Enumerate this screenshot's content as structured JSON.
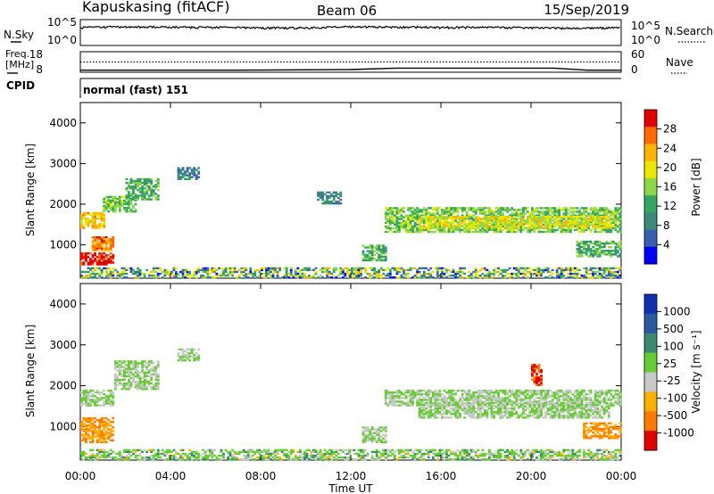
{
  "header": {
    "station": "Kapuskasing (fitACF)",
    "beam": "Beam 06",
    "date": "15/Sep/2019"
  },
  "nsky_panel": {
    "left_label": "N.Sky",
    "right_label": "N.Search",
    "left_ticks": [
      "10^5",
      "10^0"
    ],
    "right_ticks": [
      "10^5",
      "10^0"
    ]
  },
  "freq_panel": {
    "left_label_1": "Freq.",
    "left_label_2": "[MHz]",
    "right_label": "Nave",
    "left_ticks": [
      "18",
      "8"
    ],
    "right_ticks": [
      "60",
      "0"
    ]
  },
  "cpid_panel": {
    "label": "CPID",
    "mode": "normal (fast) 151"
  },
  "power_colorbar": {
    "label": "Power [dB]",
    "ticks": [
      "28",
      "24",
      "20",
      "16",
      "12",
      "8",
      "4"
    ],
    "colors": [
      "#e00000",
      "#ff6a00",
      "#ffb400",
      "#e8e800",
      "#8ed64a",
      "#34a860",
      "#3d8a7a",
      "#3a5fb0",
      "#0000ff"
    ]
  },
  "velocity_colorbar": {
    "label": "Velocity [m s⁻¹]",
    "ticks": [
      "1000",
      "500",
      "100",
      "25",
      "-25",
      "-100",
      "-500",
      "-1000"
    ],
    "colors": [
      "#1030b0",
      "#2c5aa0",
      "#3b8a70",
      "#66cc33",
      "#c8c8c8",
      "#ffb000",
      "#ff7a00",
      "#e00000"
    ]
  },
  "panels": {
    "ylabel": "Slant Range [km]",
    "yticks": [
      "4000",
      "3000",
      "2000",
      "1000"
    ]
  },
  "xaxis": {
    "label": "Time UT",
    "ticks": [
      "00:00",
      "04:00",
      "08:00",
      "12:00",
      "16:00",
      "20:00",
      "00:00"
    ]
  },
  "chart_data": [
    {
      "type": "line",
      "title": "N.Sky / N.Search",
      "x": [
        0,
        2,
        4,
        6,
        8,
        10,
        12,
        14,
        16,
        18,
        20,
        22,
        24
      ],
      "series": [
        {
          "name": "N.Sky",
          "values": [
            3000,
            4000,
            3500,
            3000,
            2500,
            2500,
            4000,
            3500,
            3000,
            3000,
            2500,
            2000,
            2500
          ]
        }
      ],
      "ylim": [
        1,
        100000
      ]
    },
    {
      "type": "line",
      "title": "Freq. / Nave",
      "x": [
        0,
        7,
        12,
        14,
        21,
        22.5,
        24
      ],
      "series": [
        {
          "name": "Freq.",
          "values": [
            9,
            9,
            9.3,
            10,
            10,
            9,
            9
          ]
        },
        {
          "name": "Nave",
          "values": [
            30,
            30,
            30,
            30,
            30,
            30,
            30
          ]
        }
      ],
      "ylim": [
        8,
        18
      ]
    },
    {
      "type": "heatmap",
      "title": "Power [dB]",
      "xlabel": "Time UT",
      "ylabel": "Slant Range [km]",
      "xlim": [
        0,
        24
      ],
      "ylim": [
        180,
        4500
      ],
      "series": [
        {
          "name": "ground",
          "values": [
            [
              0,
              24,
              180,
              420,
              8
            ]
          ]
        },
        {
          "name": "scatter",
          "values": [
            [
              0,
              1.5,
              500,
              800,
              28
            ],
            [
              0.5,
              1.5,
              850,
              1200,
              24
            ],
            [
              0,
              1.0,
              1400,
              1800,
              20
            ],
            [
              1.0,
              2.5,
              1800,
              2200,
              14
            ],
            [
              2.0,
              3.5,
              2100,
              2600,
              12
            ],
            [
              4.3,
              5.2,
              2600,
              2900,
              8
            ],
            [
              10.5,
              11.5,
              2000,
              2300,
              8
            ],
            [
              12.5,
              13.5,
              600,
              1000,
              12
            ],
            [
              13.5,
              24,
              1300,
              1900,
              14
            ],
            [
              15.0,
              23.5,
              1400,
              1700,
              18
            ],
            [
              22.0,
              24,
              700,
              1100,
              12
            ]
          ]
        }
      ],
      "zlim": [
        0,
        30
      ]
    },
    {
      "type": "heatmap",
      "title": "Velocity [m s⁻¹]",
      "xlabel": "Time UT",
      "ylabel": "Slant Range [km]",
      "xlim": [
        0,
        24
      ],
      "ylim": [
        180,
        4500
      ],
      "series": [
        {
          "name": "ground",
          "values": [
            [
              0,
              24,
              180,
              420,
              0
            ]
          ]
        },
        {
          "name": "scatter",
          "values": [
            [
              0,
              1.5,
              600,
              1200,
              -100
            ],
            [
              0,
              1.5,
              1500,
              1900,
              0
            ],
            [
              1.5,
              3.5,
              1900,
              2600,
              0
            ],
            [
              4.3,
              5.2,
              2600,
              2900,
              0
            ],
            [
              13.5,
              24,
              1500,
              1900,
              0
            ],
            [
              15.0,
              23.5,
              1200,
              1600,
              0
            ],
            [
              22.3,
              24,
              700,
              1100,
              -100
            ],
            [
              20.0,
              20.5,
              2000,
              2500,
              -500
            ],
            [
              12.5,
              13.5,
              600,
              1000,
              0
            ]
          ]
        }
      ],
      "zlim": [
        -1000,
        1000
      ]
    }
  ]
}
